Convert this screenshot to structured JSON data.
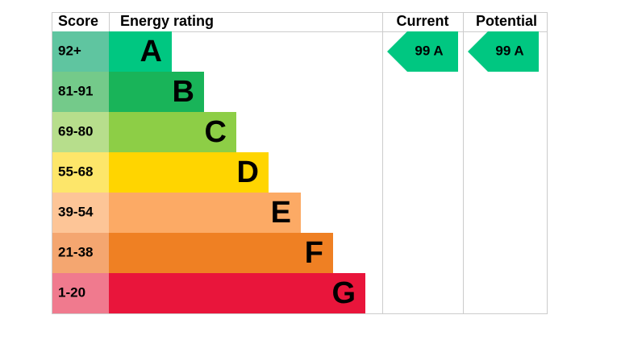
{
  "header": {
    "score": "Score",
    "rating": "Energy rating",
    "current": "Current",
    "potential": "Potential"
  },
  "rows": [
    {
      "score": "92+",
      "letter": "A",
      "score_color": "#5fc5a0",
      "bar_color": "#00c781"
    },
    {
      "score": "81-91",
      "letter": "B",
      "score_color": "#74ca8a",
      "bar_color": "#19b459"
    },
    {
      "score": "69-80",
      "letter": "C",
      "score_color": "#b7de8c",
      "bar_color": "#8dce46"
    },
    {
      "score": "55-68",
      "letter": "D",
      "score_color": "#fde66a",
      "bar_color": "#ffd500"
    },
    {
      "score": "39-54",
      "letter": "E",
      "score_color": "#fdc597",
      "bar_color": "#fcaa65"
    },
    {
      "score": "21-38",
      "letter": "F",
      "score_color": "#f4a670",
      "bar_color": "#ef8023"
    },
    {
      "score": "1-20",
      "letter": "G",
      "score_color": "#f07a8e",
      "bar_color": "#e9153b"
    }
  ],
  "current": {
    "label": "99 A",
    "row": 0
  },
  "potential": {
    "label": "99 A",
    "row": 0
  }
}
